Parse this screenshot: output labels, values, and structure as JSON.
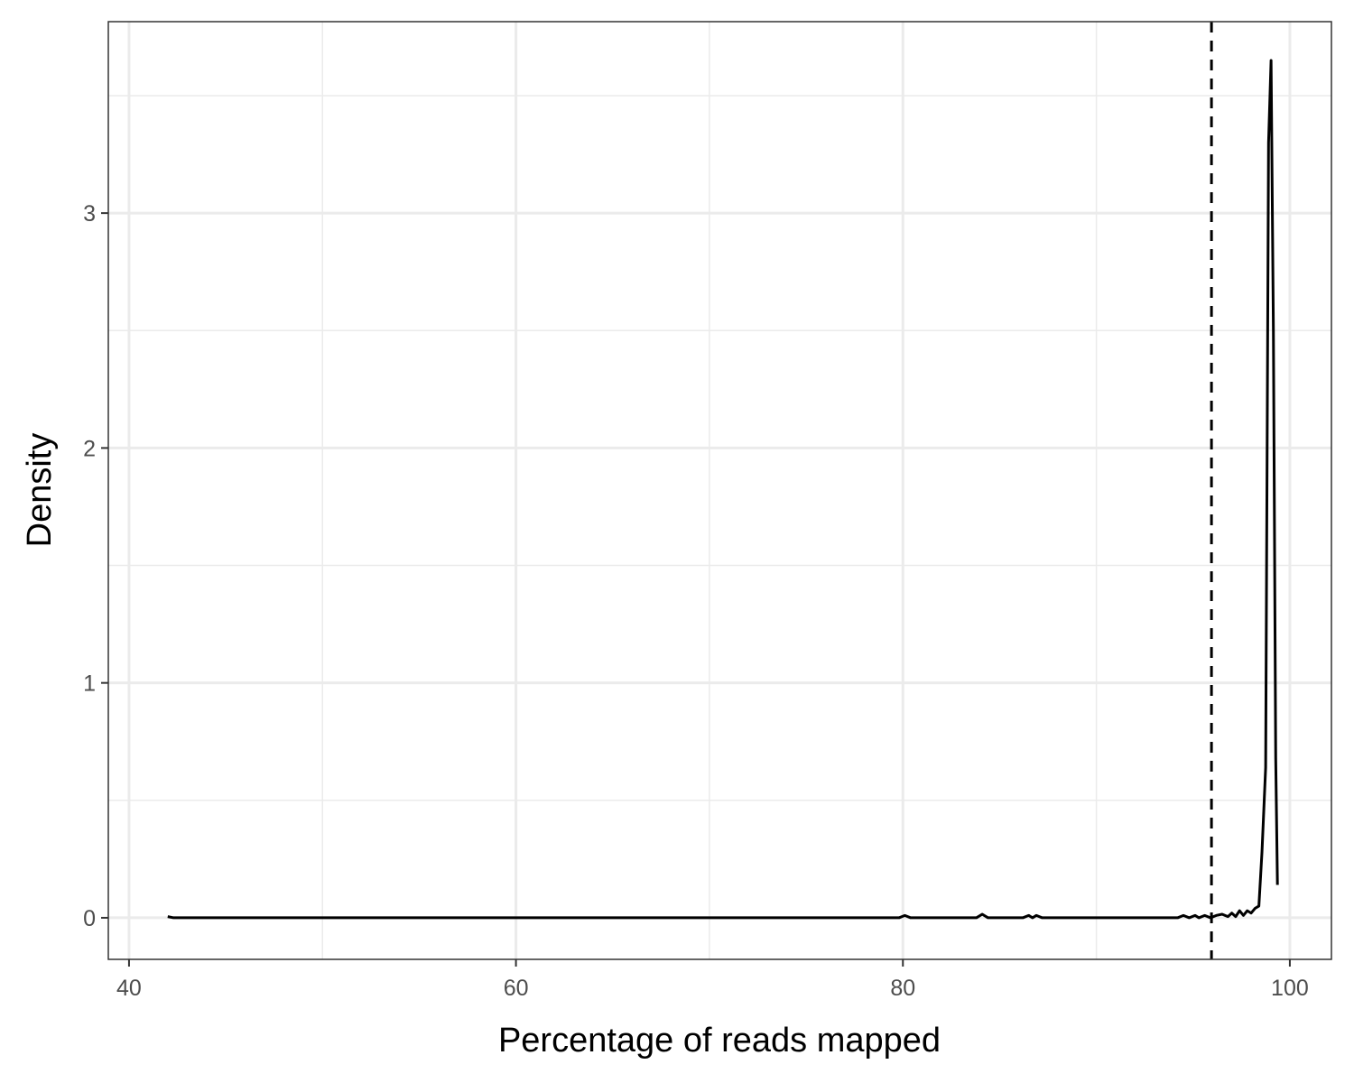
{
  "chart_data": {
    "type": "line",
    "x_label": "Percentage of reads mapped",
    "y_label": "Density",
    "x": [
      42.0,
      42.3,
      79.8,
      80.1,
      80.4,
      83.8,
      84.1,
      84.4,
      86.2,
      86.5,
      86.7,
      86.9,
      87.2,
      94.2,
      94.5,
      94.8,
      95.1,
      95.3,
      95.6,
      95.9,
      96.2,
      96.5,
      96.8,
      97.0,
      97.2,
      97.4,
      97.6,
      97.8,
      98.0,
      98.2,
      98.4,
      98.56,
      98.75,
      98.9,
      99.03,
      99.15,
      99.27,
      99.36
    ],
    "values": [
      0.005,
      0,
      0,
      0.01,
      0,
      0,
      0.015,
      0,
      0,
      0.01,
      0,
      0.01,
      0,
      0,
      0.01,
      0,
      0.01,
      0,
      0.01,
      0,
      0.01,
      0.015,
      0.005,
      0.02,
      0.005,
      0.03,
      0.01,
      0.03,
      0.02,
      0.04,
      0.05,
      0.28,
      0.64,
      3.3,
      3.65,
      2.5,
      0.68,
      0.14
    ],
    "color": "#000000",
    "vline": 95.95,
    "xlim": [
      38.93,
      102.15
    ],
    "ylim": [
      -0.177,
      3.815
    ],
    "xticks": [
      40,
      60,
      80,
      100
    ],
    "yticks": [
      0,
      1,
      2,
      3
    ],
    "xminorticks": [
      50,
      70,
      90
    ],
    "yminorticks": [
      0.5,
      1.5,
      2.5,
      3.5
    ],
    "grid": true
  }
}
